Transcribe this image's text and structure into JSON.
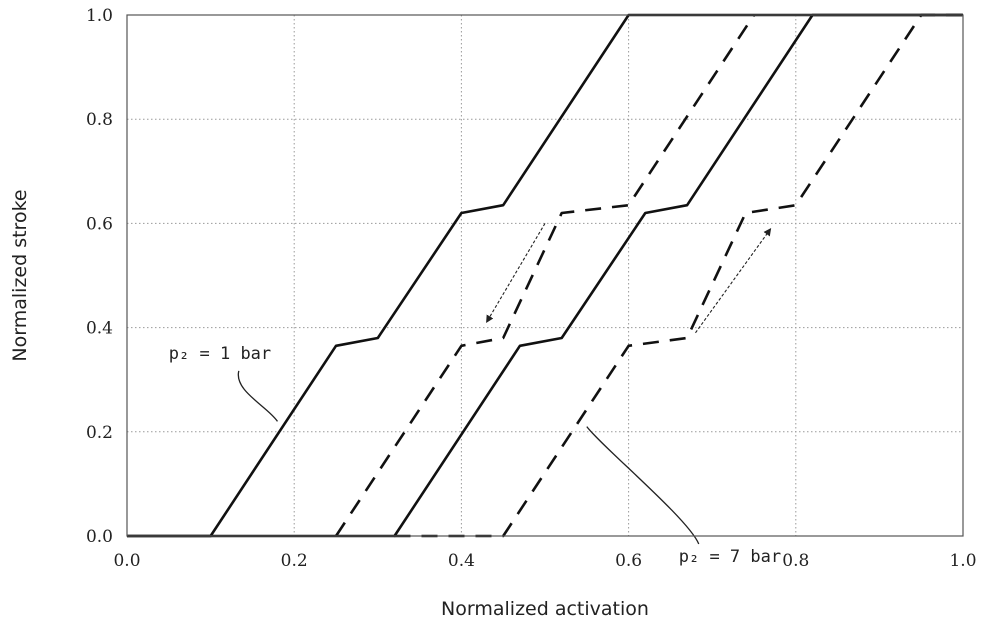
{
  "chart_data": {
    "type": "line",
    "xlabel": "Normalized activation",
    "ylabel": "Normalized stroke",
    "xlim": [
      0.0,
      1.0
    ],
    "ylim": [
      0.0,
      1.0
    ],
    "x_ticks": [
      "0.0",
      "0.2",
      "0.4",
      "0.6",
      "0.8",
      "1.0"
    ],
    "y_ticks": [
      "0.0",
      "0.2",
      "0.4",
      "0.6",
      "0.8",
      "1.0"
    ],
    "grid": true,
    "series": [
      {
        "style": "solid",
        "color": "#111111",
        "points": [
          [
            0.0,
            0.0
          ],
          [
            0.1,
            0.0
          ],
          [
            0.25,
            0.365
          ],
          [
            0.3,
            0.38
          ],
          [
            0.4,
            0.62
          ],
          [
            0.45,
            0.635
          ],
          [
            0.6,
            1.0
          ],
          [
            1.0,
            1.0
          ]
        ]
      },
      {
        "style": "dashed",
        "color": "#111111",
        "points": [
          [
            0.25,
            0.0
          ],
          [
            0.4,
            0.365
          ],
          [
            0.45,
            0.38
          ],
          [
            0.52,
            0.62
          ],
          [
            0.6,
            0.635
          ],
          [
            0.75,
            1.0
          ]
        ]
      },
      {
        "style": "solid",
        "color": "#111111",
        "points": [
          [
            0.0,
            0.0
          ],
          [
            0.32,
            0.0
          ],
          [
            0.47,
            0.365
          ],
          [
            0.52,
            0.38
          ],
          [
            0.62,
            0.62
          ],
          [
            0.67,
            0.635
          ],
          [
            0.82,
            1.0
          ],
          [
            1.0,
            1.0
          ]
        ]
      },
      {
        "style": "dashed",
        "color": "#111111",
        "points": [
          [
            0.32,
            0.0
          ],
          [
            0.45,
            0.0
          ],
          [
            0.6,
            0.365
          ],
          [
            0.67,
            0.38
          ],
          [
            0.74,
            0.62
          ],
          [
            0.8,
            0.635
          ],
          [
            0.95,
            1.0
          ],
          [
            1.0,
            1.0
          ]
        ]
      }
    ],
    "arrows": [
      {
        "from": [
          0.5,
          0.6
        ],
        "to": [
          0.43,
          0.41
        ]
      },
      {
        "from": [
          0.68,
          0.39
        ],
        "to": [
          0.77,
          0.59
        ]
      }
    ],
    "annotations": [
      {
        "text": "p₂ = 1 bar",
        "at": [
          0.05,
          0.34
        ],
        "pointer_to": [
          0.18,
          0.22
        ]
      },
      {
        "text": "p₂ = 7 bar",
        "at": [
          0.66,
          -0.05
        ],
        "pointer_to": [
          0.55,
          0.21
        ]
      }
    ]
  }
}
